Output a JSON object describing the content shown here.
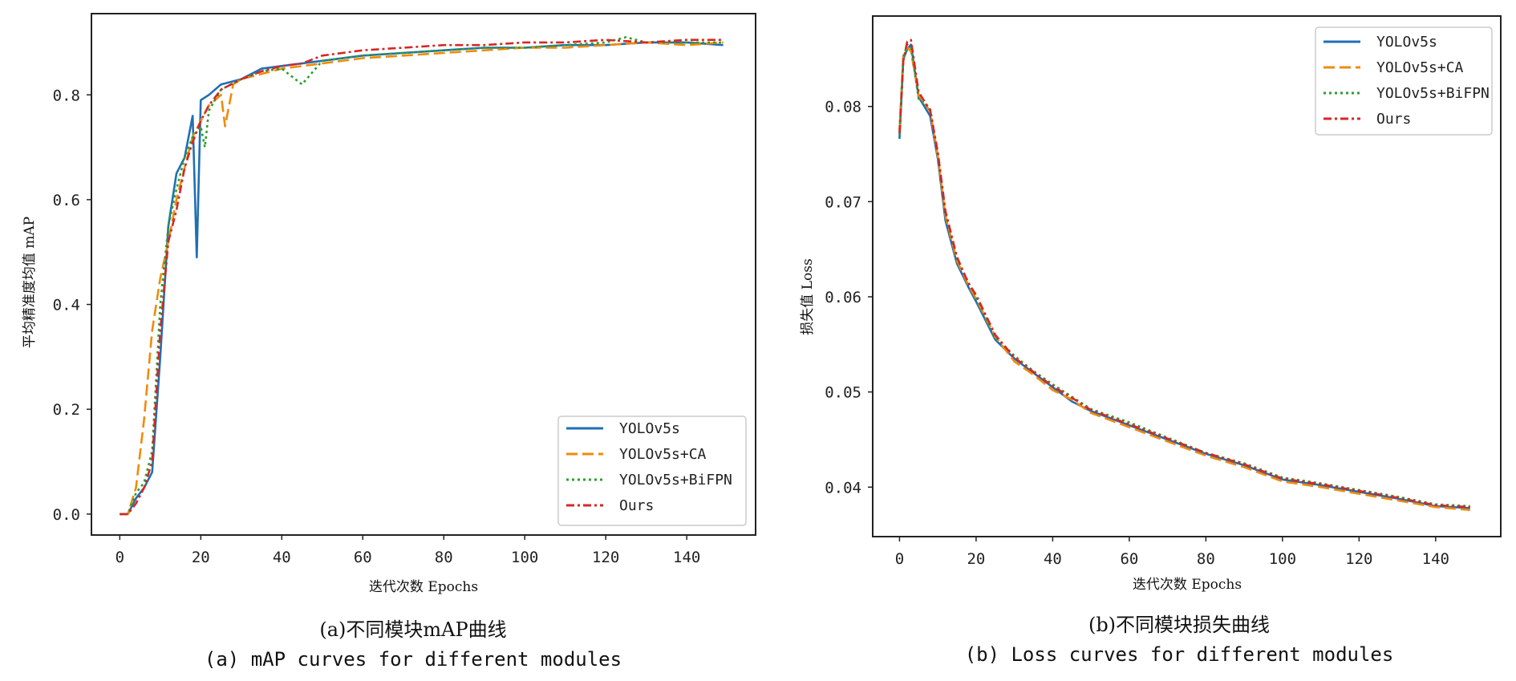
{
  "colors": {
    "YOLOv5s": "#1f6fb4",
    "YOLOv5s+CA": "#f08a0c",
    "YOLOv5s+BiFPN": "#2ca02c",
    "Ours": "#d62728"
  },
  "chart_data": [
    {
      "type": "line",
      "xlabel": "迭代次数 Epochs",
      "ylabel": "平均精准度均值 mAP",
      "xlim": [
        -7,
        157
      ],
      "ylim": [
        -0.04,
        0.955
      ],
      "xticks": [
        0,
        20,
        40,
        60,
        80,
        100,
        120,
        140
      ],
      "yticks": [
        0.0,
        0.2,
        0.4,
        0.6,
        0.8
      ],
      "ytick_labels": [
        "0.0",
        "0.2",
        "0.4",
        "0.6",
        "0.8"
      ],
      "legend_position": "lower-right",
      "series": [
        {
          "name": "YOLOv5s",
          "style": "solid",
          "x": [
            0,
            2,
            4,
            6,
            8,
            10,
            12,
            14,
            16,
            18,
            19,
            20,
            22,
            25,
            30,
            35,
            40,
            50,
            60,
            70,
            80,
            90,
            100,
            110,
            120,
            130,
            140,
            149
          ],
          "y": [
            0.0,
            0.0,
            0.03,
            0.05,
            0.08,
            0.3,
            0.55,
            0.65,
            0.68,
            0.76,
            0.49,
            0.79,
            0.8,
            0.82,
            0.83,
            0.85,
            0.855,
            0.865,
            0.875,
            0.88,
            0.885,
            0.89,
            0.89,
            0.895,
            0.895,
            0.9,
            0.9,
            0.895
          ]
        },
        {
          "name": "YOLOv5s+CA",
          "style": "dashed",
          "x": [
            0,
            2,
            4,
            6,
            8,
            10,
            12,
            14,
            16,
            18,
            20,
            22,
            25,
            26,
            28,
            30,
            35,
            40,
            50,
            60,
            70,
            80,
            90,
            100,
            110,
            120,
            130,
            140,
            149
          ],
          "y": [
            0.0,
            0.0,
            0.05,
            0.18,
            0.35,
            0.45,
            0.52,
            0.6,
            0.66,
            0.72,
            0.75,
            0.78,
            0.8,
            0.74,
            0.82,
            0.83,
            0.84,
            0.85,
            0.86,
            0.87,
            0.875,
            0.88,
            0.885,
            0.89,
            0.89,
            0.895,
            0.9,
            0.895,
            0.9
          ]
        },
        {
          "name": "YOLOv5s+BiFPN",
          "style": "dotted",
          "x": [
            0,
            2,
            4,
            6,
            8,
            10,
            12,
            14,
            16,
            18,
            20,
            21,
            22,
            25,
            30,
            35,
            40,
            45,
            50,
            60,
            70,
            80,
            90,
            100,
            110,
            120,
            125,
            130,
            140,
            149
          ],
          "y": [
            0.0,
            0.0,
            0.04,
            0.06,
            0.12,
            0.4,
            0.55,
            0.62,
            0.68,
            0.72,
            0.74,
            0.7,
            0.77,
            0.81,
            0.83,
            0.845,
            0.85,
            0.82,
            0.865,
            0.875,
            0.88,
            0.885,
            0.89,
            0.89,
            0.895,
            0.9,
            0.91,
            0.9,
            0.9,
            0.9
          ]
        },
        {
          "name": "Ours",
          "style": "dashdot",
          "x": [
            0,
            2,
            4,
            6,
            8,
            10,
            12,
            14,
            16,
            18,
            20,
            22,
            25,
            30,
            35,
            40,
            45,
            50,
            60,
            70,
            80,
            90,
            100,
            110,
            120,
            130,
            140,
            149
          ],
          "y": [
            0.0,
            0.0,
            0.02,
            0.05,
            0.1,
            0.35,
            0.52,
            0.58,
            0.66,
            0.71,
            0.75,
            0.78,
            0.81,
            0.83,
            0.845,
            0.855,
            0.86,
            0.875,
            0.885,
            0.89,
            0.895,
            0.895,
            0.9,
            0.9,
            0.905,
            0.9,
            0.905,
            0.905
          ]
        }
      ]
    },
    {
      "type": "line",
      "xlabel": "迭代次数 Epochs",
      "ylabel": "损失值 Loss",
      "xlim": [
        -7,
        157
      ],
      "ylim": [
        0.0348,
        0.0895
      ],
      "xticks": [
        0,
        20,
        40,
        60,
        80,
        100,
        120,
        140
      ],
      "yticks": [
        0.04,
        0.05,
        0.06,
        0.07,
        0.08
      ],
      "ytick_labels": [
        "0.04",
        "0.05",
        "0.06",
        "0.07",
        "0.08"
      ],
      "legend_position": "top-right",
      "series": [
        {
          "name": "YOLOv5s",
          "style": "solid",
          "x": [
            0,
            1,
            2,
            3,
            5,
            8,
            10,
            12,
            15,
            18,
            20,
            25,
            30,
            35,
            40,
            45,
            50,
            60,
            70,
            80,
            90,
            100,
            110,
            120,
            130,
            140,
            149
          ],
          "y": [
            0.0766,
            0.085,
            0.086,
            0.0865,
            0.081,
            0.079,
            0.0745,
            0.068,
            0.0635,
            0.061,
            0.0595,
            0.0555,
            0.0535,
            0.052,
            0.0505,
            0.049,
            0.048,
            0.0465,
            0.045,
            0.0435,
            0.0423,
            0.0408,
            0.0402,
            0.0395,
            0.0388,
            0.038,
            0.0378
          ]
        },
        {
          "name": "YOLOv5s+CA",
          "style": "dashed",
          "x": [
            0,
            1,
            2,
            3,
            5,
            8,
            10,
            12,
            15,
            18,
            20,
            25,
            30,
            35,
            40,
            45,
            50,
            60,
            70,
            80,
            90,
            100,
            110,
            120,
            130,
            140,
            149
          ],
          "y": [
            0.0775,
            0.0855,
            0.0862,
            0.0858,
            0.0812,
            0.0795,
            0.0748,
            0.0685,
            0.0638,
            0.0612,
            0.0598,
            0.0558,
            0.0532,
            0.0518,
            0.0502,
            0.0492,
            0.0478,
            0.0463,
            0.0448,
            0.0433,
            0.0421,
            0.0406,
            0.04,
            0.0393,
            0.0386,
            0.0379,
            0.0376
          ]
        },
        {
          "name": "YOLOv5s+BiFPN",
          "style": "dotted",
          "x": [
            0,
            1,
            2,
            3,
            5,
            8,
            10,
            12,
            15,
            18,
            20,
            25,
            30,
            35,
            40,
            45,
            50,
            60,
            70,
            80,
            90,
            100,
            110,
            120,
            130,
            140,
            149
          ],
          "y": [
            0.077,
            0.0852,
            0.0865,
            0.0862,
            0.0808,
            0.0798,
            0.075,
            0.0688,
            0.064,
            0.0615,
            0.06,
            0.0558,
            0.0538,
            0.0522,
            0.0508,
            0.0495,
            0.0482,
            0.0468,
            0.0452,
            0.0436,
            0.0425,
            0.041,
            0.0404,
            0.0397,
            0.039,
            0.0382,
            0.038
          ]
        },
        {
          "name": "Ours",
          "style": "dashdot",
          "x": [
            0,
            1,
            2,
            3,
            5,
            8,
            10,
            12,
            15,
            18,
            20,
            25,
            30,
            35,
            40,
            45,
            50,
            60,
            70,
            80,
            90,
            100,
            110,
            120,
            130,
            140,
            149
          ],
          "y": [
            0.0772,
            0.0848,
            0.0868,
            0.087,
            0.0815,
            0.0796,
            0.0752,
            0.069,
            0.0642,
            0.0614,
            0.0602,
            0.056,
            0.0536,
            0.0521,
            0.0506,
            0.0494,
            0.0481,
            0.0466,
            0.0451,
            0.0436,
            0.0424,
            0.0409,
            0.0403,
            0.0396,
            0.0389,
            0.0381,
            0.0379
          ]
        }
      ]
    }
  ],
  "captions": {
    "a_cn": "(a)不同模块mAP曲线",
    "a_en": "(a) mAP curves for different modules",
    "b_cn": "(b)不同模块损失曲线",
    "b_en": "(b) Loss curves for different modules"
  },
  "legend": {
    "left": [
      "YOLOv5s",
      "YOLOv5s+CA",
      "YOLOv5s+BiFPN",
      "Ours"
    ],
    "right": [
      "YOLOv5s",
      "YOLOv5s+CA",
      "YOLOv5s+BiFPN",
      "Ours"
    ]
  }
}
